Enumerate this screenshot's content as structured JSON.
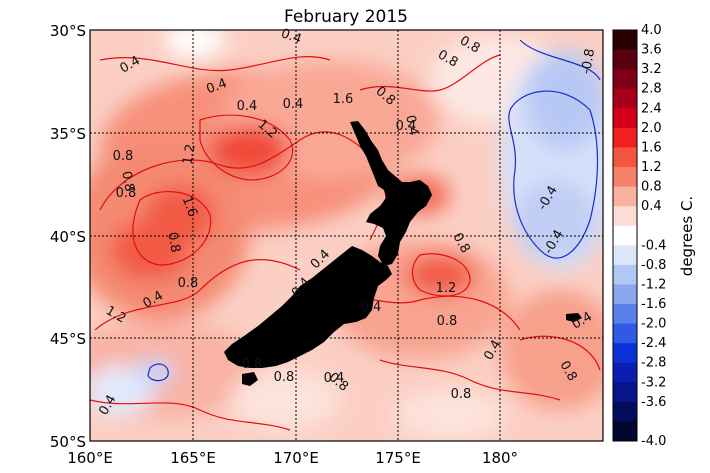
{
  "title": "February 2015",
  "lat_ticks": [
    "30°S",
    "35°S",
    "40°S",
    "45°S",
    "50°S"
  ],
  "lon_ticks": [
    "160°E",
    "165°E",
    "170°E",
    "175°E",
    "180°"
  ],
  "colorbar": {
    "unit_label": "degrees C.",
    "levels": [
      "4.0",
      "3.6",
      "3.2",
      "2.8",
      "2.4",
      "2.0",
      "1.6",
      "1.2",
      "0.8",
      "0.4",
      "-0.4",
      "-0.8",
      "-1.2",
      "-1.6",
      "-2.0",
      "-2.4",
      "-2.8",
      "-3.2",
      "-3.6",
      "-4.0"
    ],
    "colors": [
      "#2b0000",
      "#5a0010",
      "#7d0016",
      "#a8001a",
      "#d4001a",
      "#f02020",
      "#f45540",
      "#f7826a",
      "#fab2a0",
      "#fcdcd4",
      "#ffffff",
      "#dce6fb",
      "#b3c7f5",
      "#8aa6ef",
      "#5c80ea",
      "#2e5ae6",
      "#0a32d8",
      "#0a1eb2",
      "#08148a",
      "#050c5a",
      "#020630"
    ]
  },
  "contour_labels": [
    "0.4",
    "0.4",
    "0.4",
    "0.4",
    "0.8",
    "0.8",
    "0.4",
    "1.6",
    "0.8",
    "0.4",
    "-0.8",
    "1.2",
    "0.8",
    "1.2",
    "0.8",
    "0.8",
    "1.6",
    "-0.4",
    "-0.4",
    "0.8",
    "0.8",
    "0.4",
    "0.4",
    "0.8",
    "1.2",
    "1.2",
    "0.4",
    "0.4",
    "0.8",
    "0.4",
    "0.4",
    "0.4",
    "0.8",
    "0.8",
    "0.8",
    "0.4",
    "0.8",
    "0.8",
    "0.4"
  ],
  "grid": true
}
